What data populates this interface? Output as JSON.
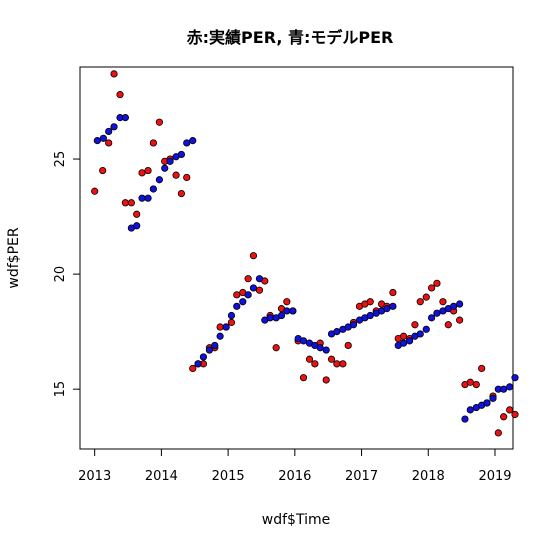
{
  "chart_data": {
    "type": "scatter",
    "title": "赤:実績PER, 青:モデルPER",
    "xlabel": "wdf$Time",
    "ylabel": "wdf$PER",
    "xlim": [
      2012.78,
      2019.27
    ],
    "ylim": [
      12.4,
      29.0
    ],
    "x_ticks": [
      "2013",
      "2014",
      "2015",
      "2016",
      "2017",
      "2018",
      "2019"
    ],
    "y_ticks": [
      "15",
      "20",
      "25"
    ],
    "grid": false,
    "series": [
      {
        "key": "actual",
        "color": "#ee1111",
        "points": [
          [
            2013.0,
            23.6
          ],
          [
            2013.12,
            24.5
          ],
          [
            2013.21,
            25.7
          ],
          [
            2013.29,
            28.7
          ],
          [
            2013.38,
            27.8
          ],
          [
            2013.46,
            23.1
          ],
          [
            2013.55,
            23.1
          ],
          [
            2013.63,
            22.6
          ],
          [
            2013.71,
            24.4
          ],
          [
            2013.8,
            24.5
          ],
          [
            2013.88,
            25.7
          ],
          [
            2013.97,
            26.6
          ],
          [
            2014.05,
            24.9
          ],
          [
            2014.13,
            25.0
          ],
          [
            2014.22,
            24.3
          ],
          [
            2014.3,
            23.5
          ],
          [
            2014.38,
            24.2
          ],
          [
            2014.47,
            15.9
          ],
          [
            2014.55,
            16.1
          ],
          [
            2014.63,
            16.1
          ],
          [
            2014.72,
            16.8
          ],
          [
            2014.8,
            16.8
          ],
          [
            2014.88,
            17.7
          ],
          [
            2014.97,
            17.7
          ],
          [
            2015.05,
            17.9
          ],
          [
            2015.13,
            19.1
          ],
          [
            2015.22,
            19.2
          ],
          [
            2015.3,
            19.8
          ],
          [
            2015.38,
            20.8
          ],
          [
            2015.47,
            19.3
          ],
          [
            2015.55,
            19.7
          ],
          [
            2015.63,
            18.2
          ],
          [
            2015.72,
            16.8
          ],
          [
            2015.8,
            18.5
          ],
          [
            2015.88,
            18.8
          ],
          [
            2015.97,
            18.4
          ],
          [
            2016.05,
            17.1
          ],
          [
            2016.13,
            15.5
          ],
          [
            2016.22,
            16.3
          ],
          [
            2016.3,
            16.1
          ],
          [
            2016.38,
            17.0
          ],
          [
            2016.47,
            15.4
          ],
          [
            2016.55,
            16.3
          ],
          [
            2016.63,
            16.1
          ],
          [
            2016.72,
            16.1
          ],
          [
            2016.8,
            16.9
          ],
          [
            2016.88,
            17.9
          ],
          [
            2016.97,
            18.6
          ],
          [
            2017.05,
            18.7
          ],
          [
            2017.13,
            18.8
          ],
          [
            2017.22,
            18.4
          ],
          [
            2017.3,
            18.7
          ],
          [
            2017.38,
            18.6
          ],
          [
            2017.47,
            19.2
          ],
          [
            2017.55,
            17.2
          ],
          [
            2017.63,
            17.3
          ],
          [
            2017.72,
            17.2
          ],
          [
            2017.8,
            17.8
          ],
          [
            2017.88,
            18.8
          ],
          [
            2017.97,
            19.0
          ],
          [
            2018.05,
            19.4
          ],
          [
            2018.13,
            19.6
          ],
          [
            2018.22,
            18.8
          ],
          [
            2018.3,
            17.8
          ],
          [
            2018.38,
            18.4
          ],
          [
            2018.47,
            18.0
          ],
          [
            2018.55,
            15.2
          ],
          [
            2018.63,
            15.3
          ],
          [
            2018.72,
            15.2
          ],
          [
            2018.8,
            15.9
          ],
          [
            2018.88,
            14.4
          ],
          [
            2018.97,
            14.7
          ],
          [
            2019.05,
            13.1
          ],
          [
            2019.13,
            13.8
          ],
          [
            2019.22,
            14.1
          ],
          [
            2019.3,
            13.9
          ]
        ]
      },
      {
        "key": "model",
        "color": "#1111dd",
        "points": [
          [
            2013.04,
            25.8
          ],
          [
            2013.13,
            25.9
          ],
          [
            2013.21,
            26.2
          ],
          [
            2013.29,
            26.4
          ],
          [
            2013.38,
            26.8
          ],
          [
            2013.46,
            26.8
          ],
          [
            2013.55,
            22.0
          ],
          [
            2013.63,
            22.1
          ],
          [
            2013.71,
            23.3
          ],
          [
            2013.8,
            23.3
          ],
          [
            2013.88,
            23.7
          ],
          [
            2013.97,
            24.1
          ],
          [
            2014.05,
            24.6
          ],
          [
            2014.13,
            24.9
          ],
          [
            2014.22,
            25.1
          ],
          [
            2014.3,
            25.2
          ],
          [
            2014.38,
            25.7
          ],
          [
            2014.47,
            25.8
          ],
          [
            2014.55,
            16.1
          ],
          [
            2014.63,
            16.4
          ],
          [
            2014.72,
            16.7
          ],
          [
            2014.8,
            16.9
          ],
          [
            2014.88,
            17.3
          ],
          [
            2014.97,
            17.7
          ],
          [
            2015.05,
            18.2
          ],
          [
            2015.13,
            18.6
          ],
          [
            2015.22,
            18.8
          ],
          [
            2015.3,
            19.1
          ],
          [
            2015.38,
            19.4
          ],
          [
            2015.47,
            19.8
          ],
          [
            2015.55,
            18.0
          ],
          [
            2015.63,
            18.1
          ],
          [
            2015.72,
            18.1
          ],
          [
            2015.8,
            18.2
          ],
          [
            2015.88,
            18.4
          ],
          [
            2015.97,
            18.4
          ],
          [
            2016.05,
            17.2
          ],
          [
            2016.13,
            17.1
          ],
          [
            2016.22,
            17.0
          ],
          [
            2016.3,
            16.9
          ],
          [
            2016.38,
            16.8
          ],
          [
            2016.47,
            16.7
          ],
          [
            2016.55,
            17.4
          ],
          [
            2016.63,
            17.5
          ],
          [
            2016.72,
            17.6
          ],
          [
            2016.8,
            17.7
          ],
          [
            2016.88,
            17.8
          ],
          [
            2016.97,
            18.0
          ],
          [
            2017.05,
            18.1
          ],
          [
            2017.13,
            18.2
          ],
          [
            2017.22,
            18.3
          ],
          [
            2017.3,
            18.4
          ],
          [
            2017.38,
            18.5
          ],
          [
            2017.47,
            18.6
          ],
          [
            2017.55,
            16.9
          ],
          [
            2017.63,
            17.0
          ],
          [
            2017.72,
            17.1
          ],
          [
            2017.8,
            17.3
          ],
          [
            2017.88,
            17.4
          ],
          [
            2017.97,
            17.6
          ],
          [
            2018.05,
            18.1
          ],
          [
            2018.13,
            18.3
          ],
          [
            2018.22,
            18.4
          ],
          [
            2018.3,
            18.5
          ],
          [
            2018.38,
            18.6
          ],
          [
            2018.47,
            18.7
          ],
          [
            2018.55,
            13.7
          ],
          [
            2018.63,
            14.1
          ],
          [
            2018.72,
            14.2
          ],
          [
            2018.8,
            14.3
          ],
          [
            2018.88,
            14.4
          ],
          [
            2018.97,
            14.6
          ],
          [
            2019.05,
            15.0
          ],
          [
            2019.13,
            15.0
          ],
          [
            2019.22,
            15.1
          ],
          [
            2019.3,
            15.5
          ]
        ]
      }
    ]
  },
  "colors": {
    "axis": "#000000",
    "marker_outline": "#000000",
    "background": "#ffffff"
  }
}
